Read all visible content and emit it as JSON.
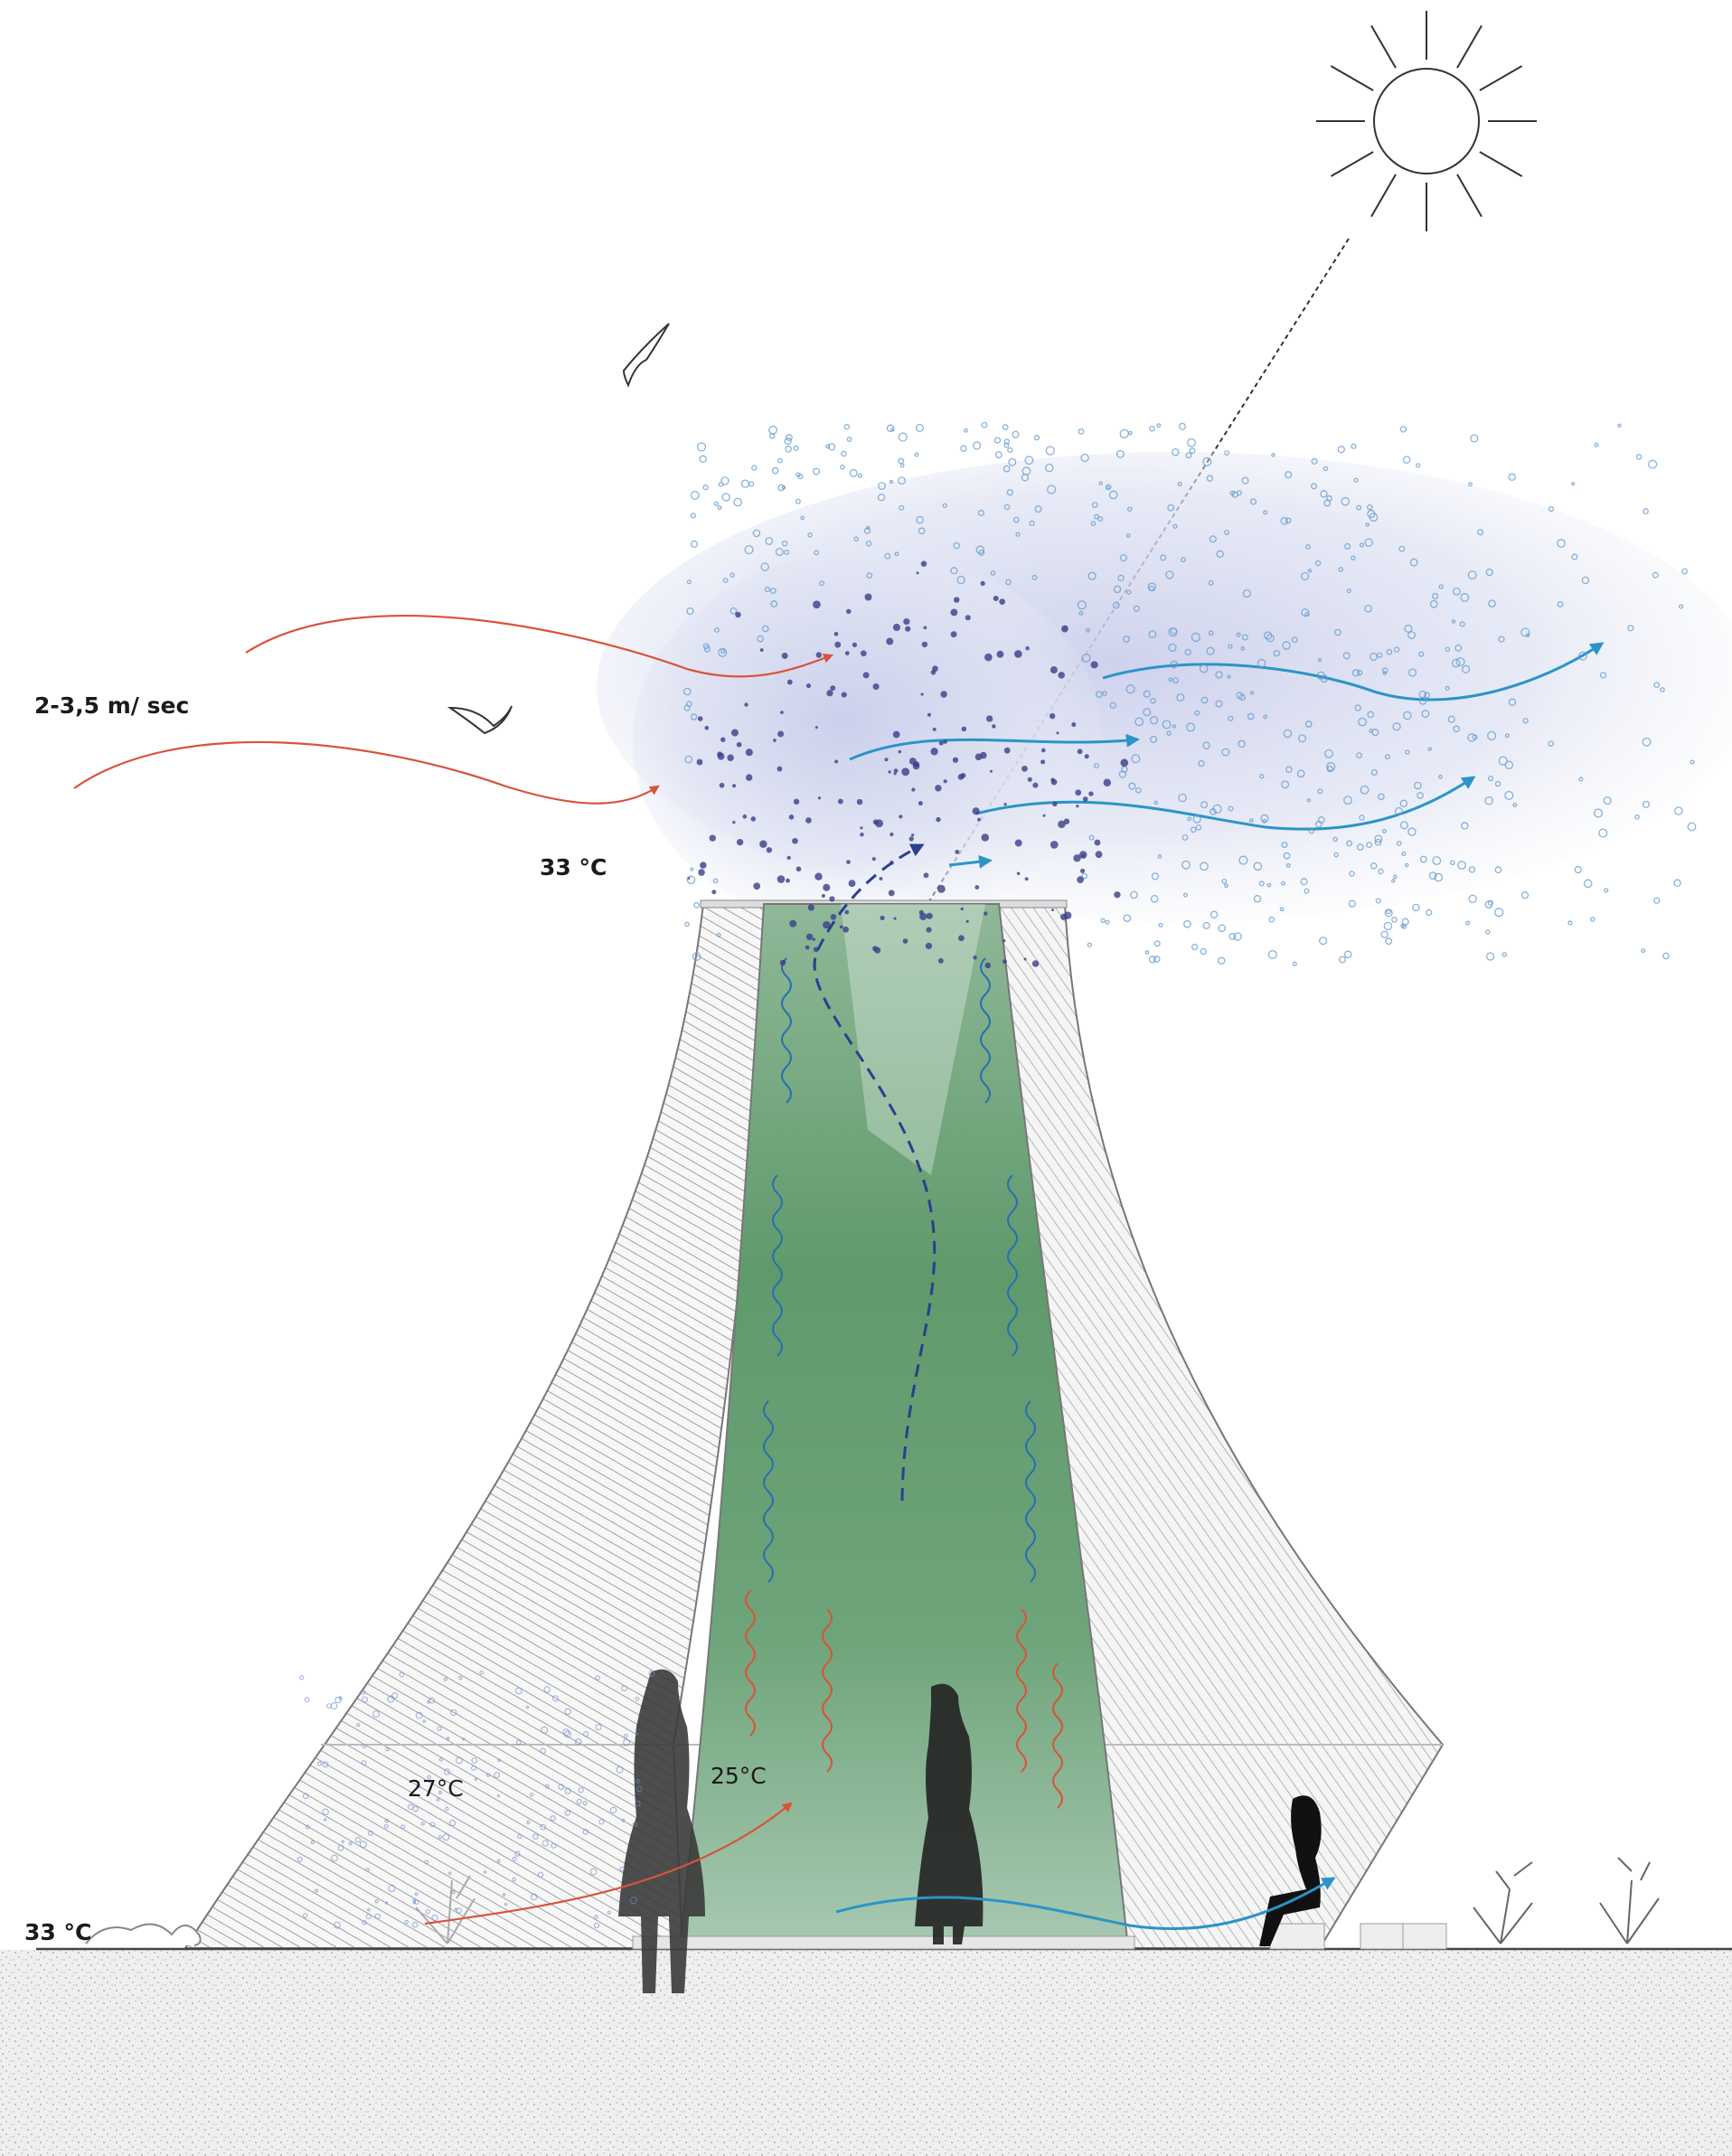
{
  "labels": {
    "wind_speed": "2-3,5 m/ sec",
    "outside_temp_top": "33 °C",
    "inside_temp_left": "27°C",
    "inside_temp_core": "25°C",
    "outside_temp_ground": "33 °C"
  }
}
